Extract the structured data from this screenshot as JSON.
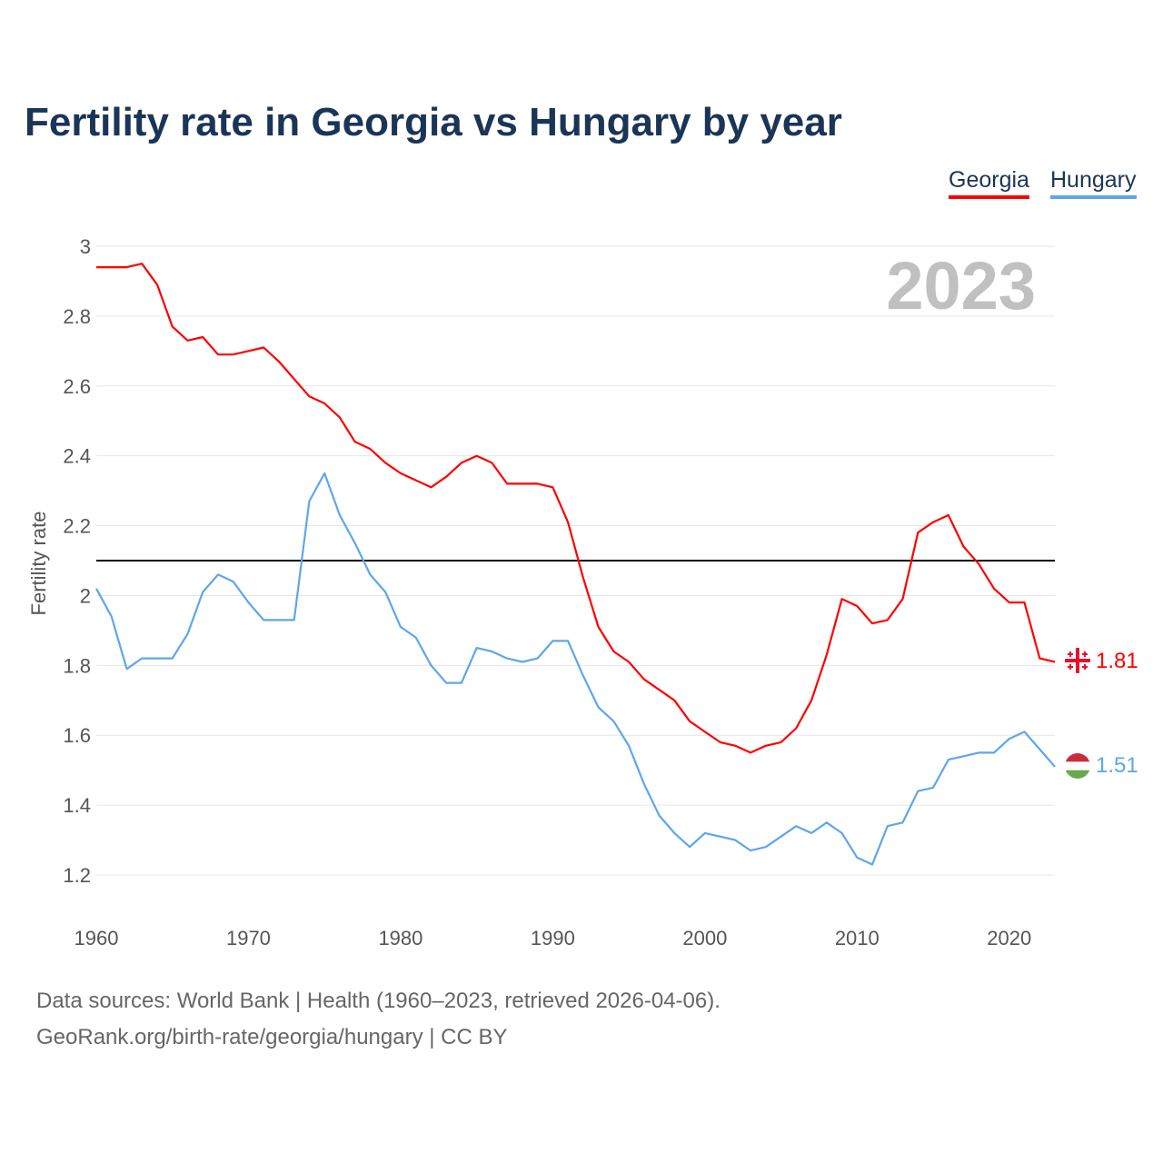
{
  "chart_data": {
    "type": "line",
    "title": "Fertility rate in Georgia vs Hungary by year",
    "xlabel": "",
    "ylabel": "Fertility rate",
    "xlim": [
      1960,
      2023
    ],
    "ylim": [
      1.1,
      3.0
    ],
    "yticks": [
      "1.2",
      "1.4",
      "1.6",
      "1.8",
      "2",
      "2.2",
      "2.4",
      "2.6",
      "2.8",
      "3"
    ],
    "xticks": [
      "1960",
      "1970",
      "1980",
      "1990",
      "2000",
      "2010",
      "2020"
    ],
    "grid": true,
    "legend": "top-right",
    "year_label": "2023",
    "reference_line": 2.1,
    "x_start": 1960,
    "series": [
      {
        "name": "Georgia",
        "color": "#ff0000",
        "end_label": "1.81",
        "values": [
          2.94,
          2.94,
          2.94,
          2.95,
          2.89,
          2.77,
          2.73,
          2.74,
          2.69,
          2.69,
          2.7,
          2.71,
          2.67,
          2.62,
          2.57,
          2.55,
          2.51,
          2.44,
          2.42,
          2.38,
          2.35,
          2.33,
          2.31,
          2.34,
          2.38,
          2.4,
          2.38,
          2.32,
          2.32,
          2.32,
          2.31,
          2.21,
          2.05,
          1.91,
          1.84,
          1.81,
          1.76,
          1.73,
          1.7,
          1.64,
          1.61,
          1.58,
          1.57,
          1.55,
          1.57,
          1.58,
          1.62,
          1.7,
          1.83,
          1.99,
          1.97,
          1.92,
          1.93,
          1.99,
          2.18,
          2.21,
          2.23,
          2.14,
          2.09,
          2.02,
          1.98,
          1.98,
          1.82,
          1.81
        ]
      },
      {
        "name": "Hungary",
        "color": "#5ea6ea",
        "end_label": "1.51",
        "values": [
          2.02,
          1.94,
          1.79,
          1.82,
          1.82,
          1.82,
          1.89,
          2.01,
          2.06,
          2.04,
          1.98,
          1.93,
          1.93,
          1.93,
          2.27,
          2.35,
          2.23,
          2.15,
          2.06,
          2.01,
          1.91,
          1.88,
          1.8,
          1.75,
          1.75,
          1.85,
          1.84,
          1.82,
          1.81,
          1.82,
          1.87,
          1.87,
          1.77,
          1.68,
          1.64,
          1.57,
          1.46,
          1.37,
          1.32,
          1.28,
          1.32,
          1.31,
          1.3,
          1.27,
          1.28,
          1.31,
          1.34,
          1.32,
          1.35,
          1.32,
          1.25,
          1.23,
          1.34,
          1.35,
          1.44,
          1.45,
          1.53,
          1.54,
          1.55,
          1.55,
          1.59,
          1.61,
          1.56,
          1.51
        ]
      }
    ]
  },
  "footer": {
    "sources": "Data sources: World Bank | Health (1960–2023, retrieved 2026-04-06).",
    "link": "GeoRank.org/birth-rate/georgia/hungary | CC BY"
  }
}
